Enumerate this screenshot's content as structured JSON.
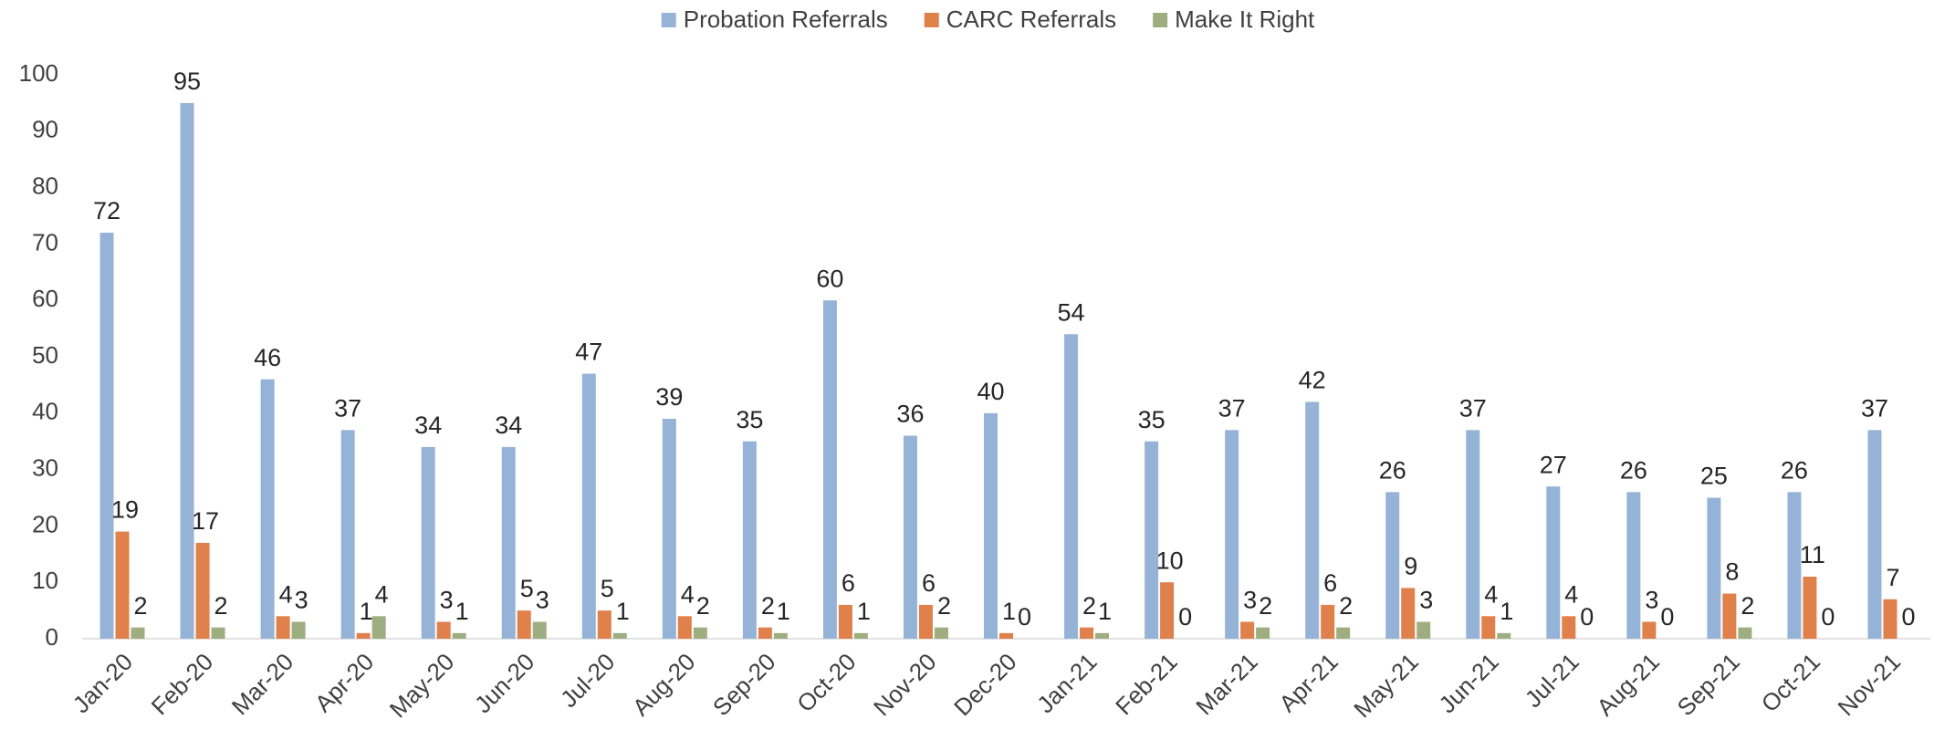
{
  "chart_data": {
    "type": "bar",
    "categories": [
      "Jan-20",
      "Feb-20",
      "Mar-20",
      "Apr-20",
      "May-20",
      "Jun-20",
      "Jul-20",
      "Aug-20",
      "Sep-20",
      "Oct-20",
      "Nov-20",
      "Dec-20",
      "Jan-21",
      "Feb-21",
      "Mar-21",
      "Apr-21",
      "May-21",
      "Jun-21",
      "Jul-21",
      "Aug-21",
      "Sep-21",
      "Oct-21",
      "Nov-21"
    ],
    "series": [
      {
        "name": "Probation Referrals",
        "color": "#95b3d7",
        "values": [
          72,
          95,
          46,
          37,
          34,
          34,
          47,
          39,
          35,
          60,
          36,
          40,
          54,
          35,
          37,
          42,
          26,
          37,
          27,
          26,
          25,
          26,
          37
        ]
      },
      {
        "name": "CARC Referrals",
        "color": "#e0804a",
        "values": [
          19,
          17,
          4,
          1,
          3,
          5,
          5,
          4,
          2,
          6,
          6,
          1,
          2,
          10,
          3,
          6,
          9,
          4,
          4,
          3,
          8,
          11,
          7
        ]
      },
      {
        "name": "Make It Right",
        "color": "#9fae80",
        "values": [
          2,
          2,
          3,
          4,
          1,
          3,
          1,
          2,
          1,
          1,
          2,
          0,
          1,
          0,
          2,
          2,
          3,
          1,
          0,
          0,
          2,
          0,
          0
        ]
      }
    ],
    "ylim": [
      0,
      100
    ],
    "yticks": [
      0,
      10,
      20,
      30,
      40,
      50,
      60,
      70,
      80,
      90,
      100
    ],
    "legend": "top",
    "data_labels": true
  }
}
